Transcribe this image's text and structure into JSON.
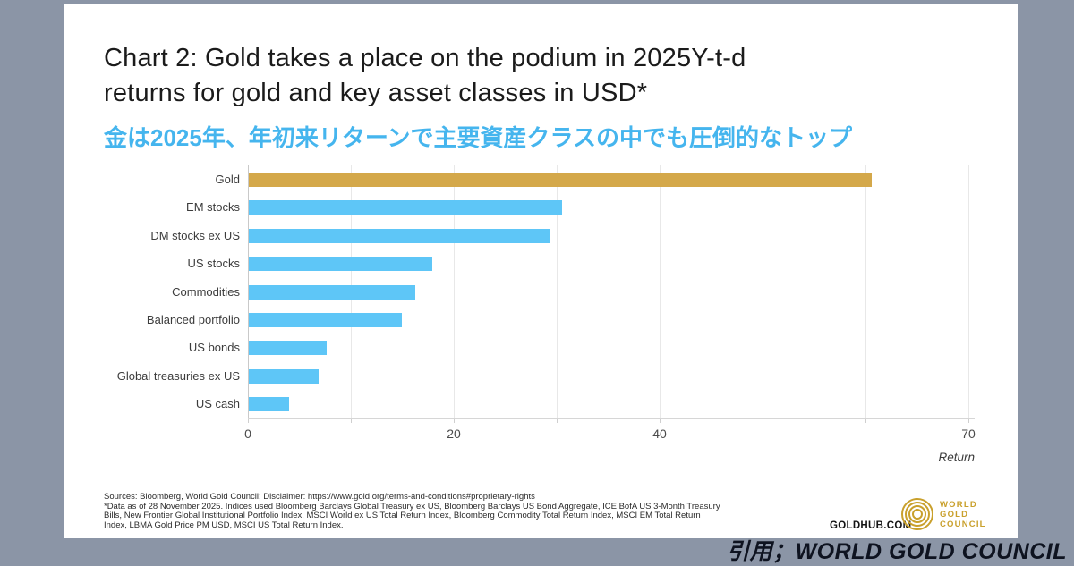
{
  "header": {
    "title_lines": [
      "Chart 2: Gold takes a place on the podium in 2025Y-t-d",
      "returns for gold and key asset classes in USD*"
    ],
    "subtitle_ja": "金は2025年、年初来リターンで主要資産クラスの中でも圧倒的なトップ"
  },
  "colors": {
    "page_background": "#8B95A6",
    "card_background": "#ffffff",
    "title_text": "#1b1b1b",
    "subtitle_blue": "#45B5EE",
    "gold_bar": "#D4A84A",
    "blue_bar": "#5EC6F7",
    "logo_gold": "#C9A02C"
  },
  "chart_data": {
    "type": "bar",
    "orientation": "horizontal",
    "categories": [
      "Gold",
      "EM stocks",
      "DM stocks ex US",
      "US stocks",
      "Commodities",
      "Balanced portfolio",
      "US bonds",
      "Global treasuries ex US",
      "US cash"
    ],
    "values": [
      60.5,
      30.4,
      29.3,
      17.8,
      16.2,
      14.9,
      7.6,
      6.8,
      3.9
    ],
    "bar_colors": [
      "#D4A84A",
      "#5EC6F7",
      "#5EC6F7",
      "#5EC6F7",
      "#5EC6F7",
      "#5EC6F7",
      "#5EC6F7",
      "#5EC6F7",
      "#5EC6F7"
    ],
    "xlabel": "Return",
    "xlim": [
      0,
      70
    ],
    "xticks": [
      0,
      20,
      40,
      70
    ],
    "gridline_interval": 10,
    "grid": true,
    "legend": "none",
    "title": "Chart 2: Gold takes a place on the podium in 2025 Y-t-d returns for gold and key asset classes in USD*"
  },
  "footer": {
    "sources_lines": [
      "Sources: Bloomberg, World Gold Council; Disclaimer: https://www.gold.org/terms-and-conditions#proprietary-rights",
      "*Data as of 28 November 2025. Indices used Bloomberg Barclays Global Treasury ex US, Bloomberg Barclays US Bond Aggregate, ICE BofA US 3-Month Treasury",
      "Bills, New Frontier Global Institutional Portfolio Index, MSCI World ex US Total Return Index, Bloomberg Commodity Total Return Index, MSCI EM Total Return",
      "Index, LBMA Gold Price PM USD, MSCI US Total Return Index."
    ],
    "goldhub_label": "GOLDHUB.COM",
    "logo_lines": [
      "WORLD",
      "GOLD",
      "COUNCIL"
    ]
  },
  "caption": "引用；WORLD GOLD COUNCIL"
}
